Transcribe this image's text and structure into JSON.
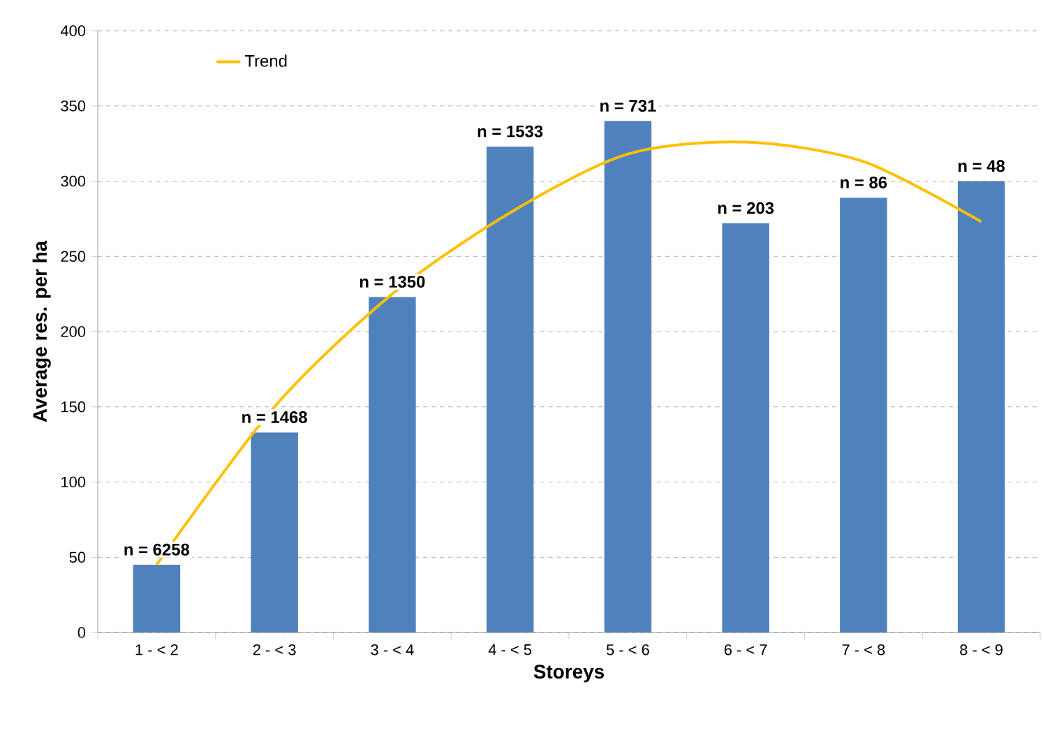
{
  "chart_data": {
    "type": "bar",
    "xlabel": "Storeys",
    "ylabel": "Average res. per ha",
    "categories": [
      "1 -  < 2",
      "2 -  < 3",
      "3 -  < 4",
      "4 -  < 5",
      "5 -  < 6",
      "6 -  < 7",
      "7 -  < 8",
      "8 -  < 9"
    ],
    "series": [
      {
        "type": "bar",
        "color": "#4f81bd",
        "values": [
          45,
          133,
          223,
          323,
          340,
          272,
          289,
          300
        ]
      },
      {
        "type": "line",
        "name": "Trend",
        "color": "#ffc000",
        "values": [
          45,
          150,
          225,
          279,
          318,
          326,
          313,
          273
        ]
      }
    ],
    "annotations": [
      "n = 6258",
      "n = 1468",
      "n = 1350",
      "n = 1533",
      "n = 731",
      "n = 203",
      "n = 86",
      "n = 48"
    ],
    "ylim": [
      0,
      400
    ],
    "yticks": [
      0,
      50,
      100,
      150,
      200,
      250,
      300,
      350,
      400
    ],
    "grid": "y",
    "legend": "top left",
    "line_style": "solid",
    "marker": "none"
  }
}
